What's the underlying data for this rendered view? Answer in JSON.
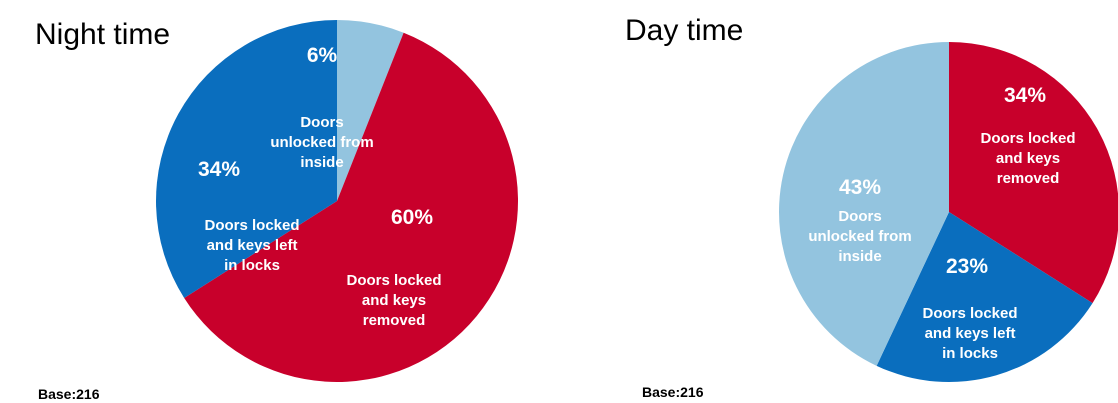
{
  "chart_data": [
    {
      "type": "pie",
      "title": "Night time",
      "base_label": "Base:216",
      "slices": [
        {
          "label": "Doors locked and keys removed",
          "value": 60,
          "value_label": "60%",
          "color": "#c8002b"
        },
        {
          "label": "Doors locked and keys left in locks",
          "value": 34,
          "value_label": "34%",
          "color": "#0a6ebe"
        },
        {
          "label": "Doors unlocked from inside",
          "value": 6,
          "value_label": "6%",
          "color": "#93c4df"
        }
      ]
    },
    {
      "type": "pie",
      "title": "Day time",
      "base_label": "Base:216",
      "slices": [
        {
          "label": "Doors locked and keys removed",
          "value": 34,
          "value_label": "34%",
          "color": "#c8002b"
        },
        {
          "label": "Doors locked and keys left in locks",
          "value": 23,
          "value_label": "23%",
          "color": "#0a6ebe"
        },
        {
          "label": "Doors unlocked from inside",
          "value": 43,
          "value_label": "43%",
          "color": "#93c4df"
        }
      ]
    }
  ]
}
